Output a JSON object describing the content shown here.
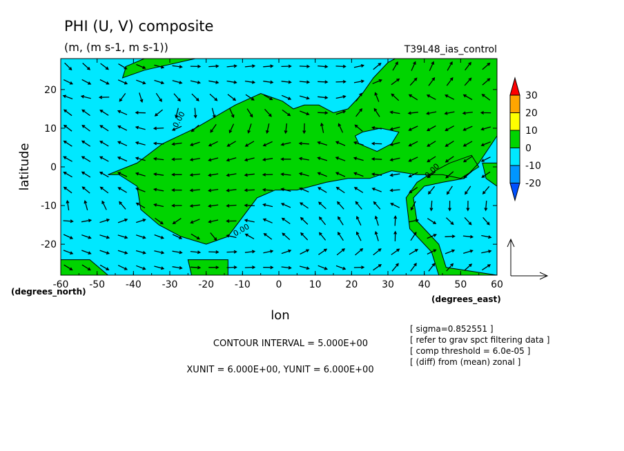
{
  "chart_data": {
    "type": "heatmap",
    "title": "PHI (U, V) composite",
    "subtitle": "(m, (m s-1, m s-1))",
    "run_label": "T39L48_ias_control",
    "xlabel": "lon",
    "ylabel": "latitude",
    "x_unit_label": "(degrees_east)",
    "y_unit_label": "(degrees_north)",
    "xlim": [
      -60,
      60
    ],
    "ylim": [
      -28,
      28
    ],
    "x_ticks": [
      -60,
      -50,
      -40,
      -30,
      -20,
      -10,
      0,
      10,
      20,
      30,
      40,
      50,
      60
    ],
    "x_tick_labels": [
      "-60",
      "-50",
      "-40",
      "-30",
      "-20",
      "-10",
      "0",
      "10",
      "20",
      "30",
      "40",
      "50",
      "60"
    ],
    "y_ticks": [
      -20,
      -10,
      0,
      10,
      20
    ],
    "y_tick_labels": [
      "-20",
      "-10",
      "0",
      "10",
      "20"
    ],
    "contour_label": "0.00",
    "colorbar": {
      "levels": [
        30,
        20,
        10,
        0,
        -10,
        -20
      ],
      "labels": [
        "30",
        "20",
        "10",
        "0",
        "-10",
        "-20"
      ],
      "colors": [
        "#ff0000",
        "#ffa500",
        "#ffff00",
        "#00d400",
        "#00e8ff",
        "#0096ff",
        "#0050ff"
      ]
    },
    "fill_colors": {
      "positive": "#00d400",
      "negative": "#00e8ff"
    },
    "regions_positive": [
      [
        [
          -60,
          -24
        ],
        [
          -52,
          -24
        ],
        [
          -47,
          -28
        ],
        [
          -60,
          -28
        ]
      ],
      [
        [
          -42,
          26
        ],
        [
          -37,
          28
        ],
        [
          -23,
          28
        ],
        [
          -37,
          25
        ],
        [
          -43,
          23
        ]
      ],
      [
        [
          -25,
          -24
        ],
        [
          -14,
          -24
        ],
        [
          -14,
          -28
        ],
        [
          -24,
          -28
        ]
      ],
      [
        [
          -47,
          -2
        ],
        [
          -39,
          1
        ],
        [
          -32,
          6
        ],
        [
          -23,
          10
        ],
        [
          -12,
          16
        ],
        [
          -5,
          19
        ],
        [
          1,
          17
        ],
        [
          4,
          15
        ],
        [
          7,
          16
        ],
        [
          11,
          16
        ],
        [
          15,
          14
        ],
        [
          19,
          15
        ],
        [
          23,
          19
        ],
        [
          26,
          23
        ],
        [
          30,
          27
        ],
        [
          32,
          28
        ],
        [
          60,
          28
        ],
        [
          60,
          8
        ],
        [
          55,
          1
        ],
        [
          51,
          -3
        ],
        [
          45,
          -4
        ],
        [
          40,
          -5
        ],
        [
          37,
          -8
        ],
        [
          38,
          -14
        ],
        [
          44,
          -20
        ],
        [
          46,
          -26
        ],
        [
          60,
          -28
        ],
        [
          60,
          -28
        ],
        [
          44,
          -28
        ],
        [
          42,
          -22
        ],
        [
          36,
          -16
        ],
        [
          35,
          -8
        ],
        [
          38,
          -4
        ],
        [
          43,
          -1
        ],
        [
          47,
          1
        ],
        [
          53,
          3
        ],
        [
          55,
          0
        ],
        [
          50,
          -3
        ],
        [
          45,
          -2
        ],
        [
          38,
          -2
        ],
        [
          31,
          -1
        ],
        [
          25,
          -3
        ],
        [
          19,
          -3
        ],
        [
          13,
          -4
        ],
        [
          5,
          -6
        ],
        [
          -1,
          -6
        ],
        [
          -6,
          -8
        ],
        [
          -10,
          -13
        ],
        [
          -14,
          -18
        ],
        [
          -20,
          -20
        ],
        [
          -27,
          -18
        ],
        [
          -33,
          -15
        ],
        [
          -38,
          -11
        ],
        [
          -39,
          -5
        ],
        [
          -44,
          -2
        ]
      ],
      [
        [
          56,
          1
        ],
        [
          60,
          1
        ],
        [
          60,
          -5
        ],
        [
          57,
          -3
        ]
      ]
    ],
    "regions_negative_inside": [
      [
        [
          22,
          6
        ],
        [
          27,
          4
        ],
        [
          31,
          6
        ],
        [
          33,
          9
        ],
        [
          28,
          10
        ],
        [
          23,
          9
        ],
        [
          21,
          8
        ]
      ]
    ],
    "vector_grid": {
      "dx": 5,
      "dy": 4,
      "reference_arrow": "XUNIT/YUNIT"
    },
    "annotations": [
      "[ sigma=0.852551 ]",
      "[ refer to grav spct filtering data ]",
      "[ comp threshold = 6.0e-05 ]",
      "[ (diff) from (mean) zonal ]"
    ],
    "contour_interval": "CONTOUR INTERVAL = 5.000E+00",
    "unit_vectors": "XUNIT = 6.000E+00, YUNIT = 6.000E+00"
  }
}
